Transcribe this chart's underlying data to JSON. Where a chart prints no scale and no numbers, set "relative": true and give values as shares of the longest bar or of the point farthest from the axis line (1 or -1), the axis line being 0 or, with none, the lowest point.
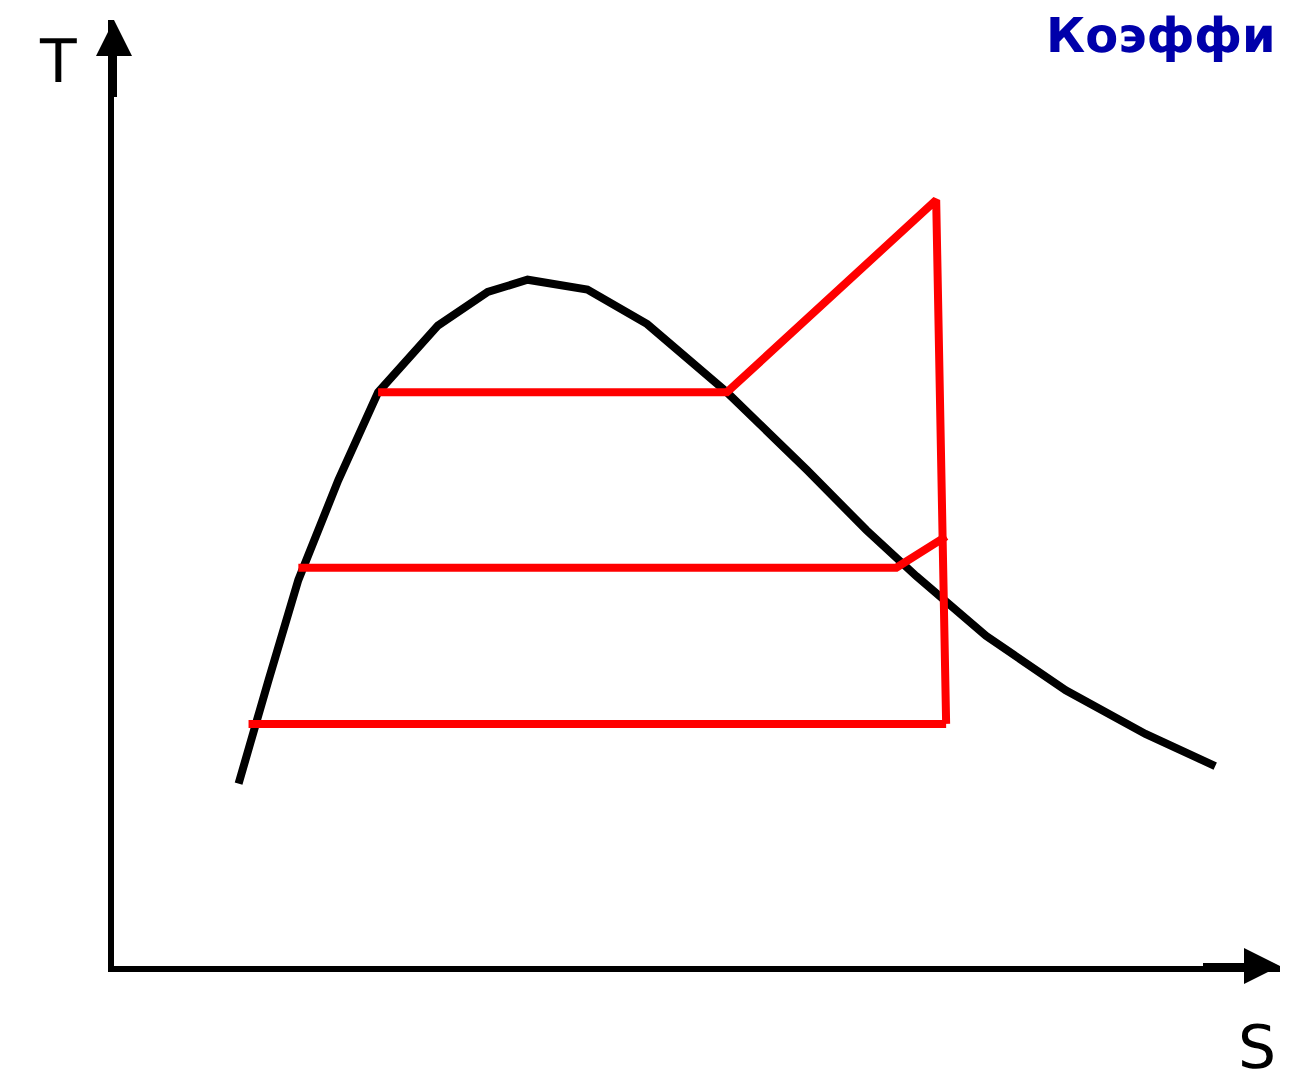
{
  "chart_data": {
    "type": "line",
    "title": "Коэффи",
    "xlabel": "S",
    "ylabel": "T",
    "relative": true,
    "grid": false,
    "marker": "none",
    "line_style": "solid",
    "categories": [
      null,
      null,
      null,
      null,
      null,
      null,
      null,
      null,
      null,
      null,
      null,
      null,
      null,
      null,
      null,
      null,
      null,
      null,
      null,
      null,
      null,
      null,
      null,
      null,
      null,
      null,
      null,
      null,
      null,
      null,
      null,
      null,
      null,
      null,
      null,
      null,
      null,
      null,
      null,
      null,
      null,
      null,
      null,
      null,
      null,
      null,
      null,
      null,
      null,
      null,
      null,
      null,
      null,
      null,
      null,
      null,
      null,
      null,
      null,
      null,
      null,
      null,
      null,
      null,
      null,
      null,
      null,
      null,
      null,
      null,
      null,
      null,
      null,
      null,
      null,
      null,
      null,
      null,
      null,
      null,
      null,
      null,
      null,
      null,
      null,
      null,
      null,
      null,
      null,
      null,
      null,
      null,
      null,
      null,
      null,
      null,
      null,
      null,
      null,
      null,
      null,
      null,
      null,
      null,
      null,
      null,
      null,
      null,
      null,
      null,
      null,
      null,
      null,
      null,
      null,
      null,
      null
    ],
    "series": [
      {
        "color": "#000000",
        "values": [
          null,
          null,
          null,
          null,
          null,
          null,
          null,
          null,
          null,
          null,
          null,
          null,
          0.238,
          null,
          null,
          0.373,
          null,
          null,
          0.504,
          null,
          null,
          null,
          0.634,
          null,
          null,
          null,
          0.749,
          null,
          null,
          null,
          null,
          null,
          0.836,
          null,
          null,
          null,
          null,
          0.88,
          null,
          null,
          null,
          0.896,
          null,
          null,
          null,
          null,
          null,
          0.883,
          null,
          null,
          null,
          null,
          null,
          0.838,
          null,
          null,
          null,
          null,
          null,
          null,
          null,
          0.749,
          null,
          null,
          null,
          null,
          null,
          null,
          null,
          0.648,
          null,
          null,
          null,
          null,
          null,
          0.569,
          null,
          null,
          null,
          null,
          0.509,
          null,
          null,
          null,
          null,
          null,
          null,
          0.431,
          null,
          null,
          null,
          null,
          null,
          null,
          null,
          0.36,
          null,
          null,
          null,
          null,
          null,
          null,
          null,
          0.303,
          null,
          null,
          null,
          null,
          null,
          null,
          0.261,
          null,
          null,
          null,
          null,
          null,
          null
        ]
      },
      {
        "color": "#ff0000",
        "values": [
          null,
          null,
          null,
          null,
          null,
          null,
          null,
          null,
          null,
          null,
          null,
          null,
          null,
          null,
          null,
          null,
          null,
          null,
          null,
          null,
          null,
          null,
          null,
          null,
          null,
          null,
          0.749,
          null,
          null,
          null,
          null,
          null,
          null,
          null,
          null,
          null,
          null,
          null,
          null,
          null,
          null,
          null,
          null,
          null,
          null,
          null,
          null,
          null,
          null,
          null,
          null,
          null,
          null,
          null,
          null,
          null,
          null,
          null,
          null,
          null,
          null,
          0.749,
          null,
          null,
          null,
          null,
          null,
          null,
          null,
          null,
          null,
          null,
          null,
          null,
          null,
          null,
          null,
          null,
          null,
          null,
          null,
          null,
          1.0,
          0.316,
          null,
          null,
          null,
          null,
          null,
          null,
          null,
          null,
          null,
          null,
          null,
          null,
          null,
          null,
          null,
          null,
          null,
          null,
          null,
          null,
          null,
          null,
          null,
          null,
          null,
          null,
          null,
          null,
          null,
          null,
          null,
          null,
          null
        ]
      },
      {
        "color": "#ff0000",
        "values": [
          null,
          null,
          null,
          null,
          null,
          null,
          null,
          null,
          null,
          null,
          null,
          null,
          null,
          0.316,
          null,
          null,
          null,
          null,
          null,
          null,
          null,
          null,
          null,
          null,
          null,
          null,
          null,
          null,
          null,
          null,
          null,
          null,
          null,
          null,
          null,
          null,
          null,
          null,
          null,
          null,
          null,
          null,
          null,
          null,
          null,
          null,
          null,
          null,
          null,
          null,
          null,
          null,
          null,
          null,
          null,
          null,
          null,
          null,
          null,
          null,
          null,
          null,
          null,
          null,
          null,
          null,
          null,
          null,
          null,
          null,
          null,
          null,
          null,
          null,
          null,
          null,
          null,
          null,
          null,
          null,
          null,
          null,
          null,
          0.316,
          null,
          null,
          null,
          null,
          null,
          null,
          null,
          null,
          null,
          null,
          null,
          null,
          null,
          null,
          null,
          null,
          null,
          null,
          null,
          null,
          null,
          null,
          null,
          null,
          null,
          null,
          null,
          null,
          null,
          null,
          null,
          null,
          null
        ]
      },
      {
        "color": "#ff0000",
        "values": [
          null,
          null,
          null,
          null,
          null,
          null,
          null,
          null,
          null,
          null,
          null,
          null,
          null,
          null,
          null,
          null,
          null,
          null,
          0.52,
          null,
          null,
          null,
          null,
          null,
          null,
          null,
          null,
          null,
          null,
          null,
          null,
          null,
          null,
          null,
          null,
          null,
          null,
          null,
          null,
          null,
          null,
          null,
          null,
          null,
          null,
          null,
          null,
          null,
          null,
          null,
          null,
          null,
          null,
          null,
          null,
          null,
          null,
          null,
          null,
          null,
          null,
          null,
          null,
          null,
          null,
          null,
          null,
          null,
          null,
          null,
          null,
          null,
          null,
          null,
          null,
          null,
          null,
          null,
          0.52,
          null,
          null,
          null,
          null,
          0.561,
          null,
          null,
          null,
          null,
          null,
          null,
          null,
          null,
          null,
          null,
          null,
          null,
          null,
          null,
          null,
          null,
          null,
          null,
          null,
          null,
          null,
          null,
          null,
          null,
          null,
          null,
          null,
          null,
          null,
          null,
          null,
          null,
          null
        ]
      }
    ]
  }
}
